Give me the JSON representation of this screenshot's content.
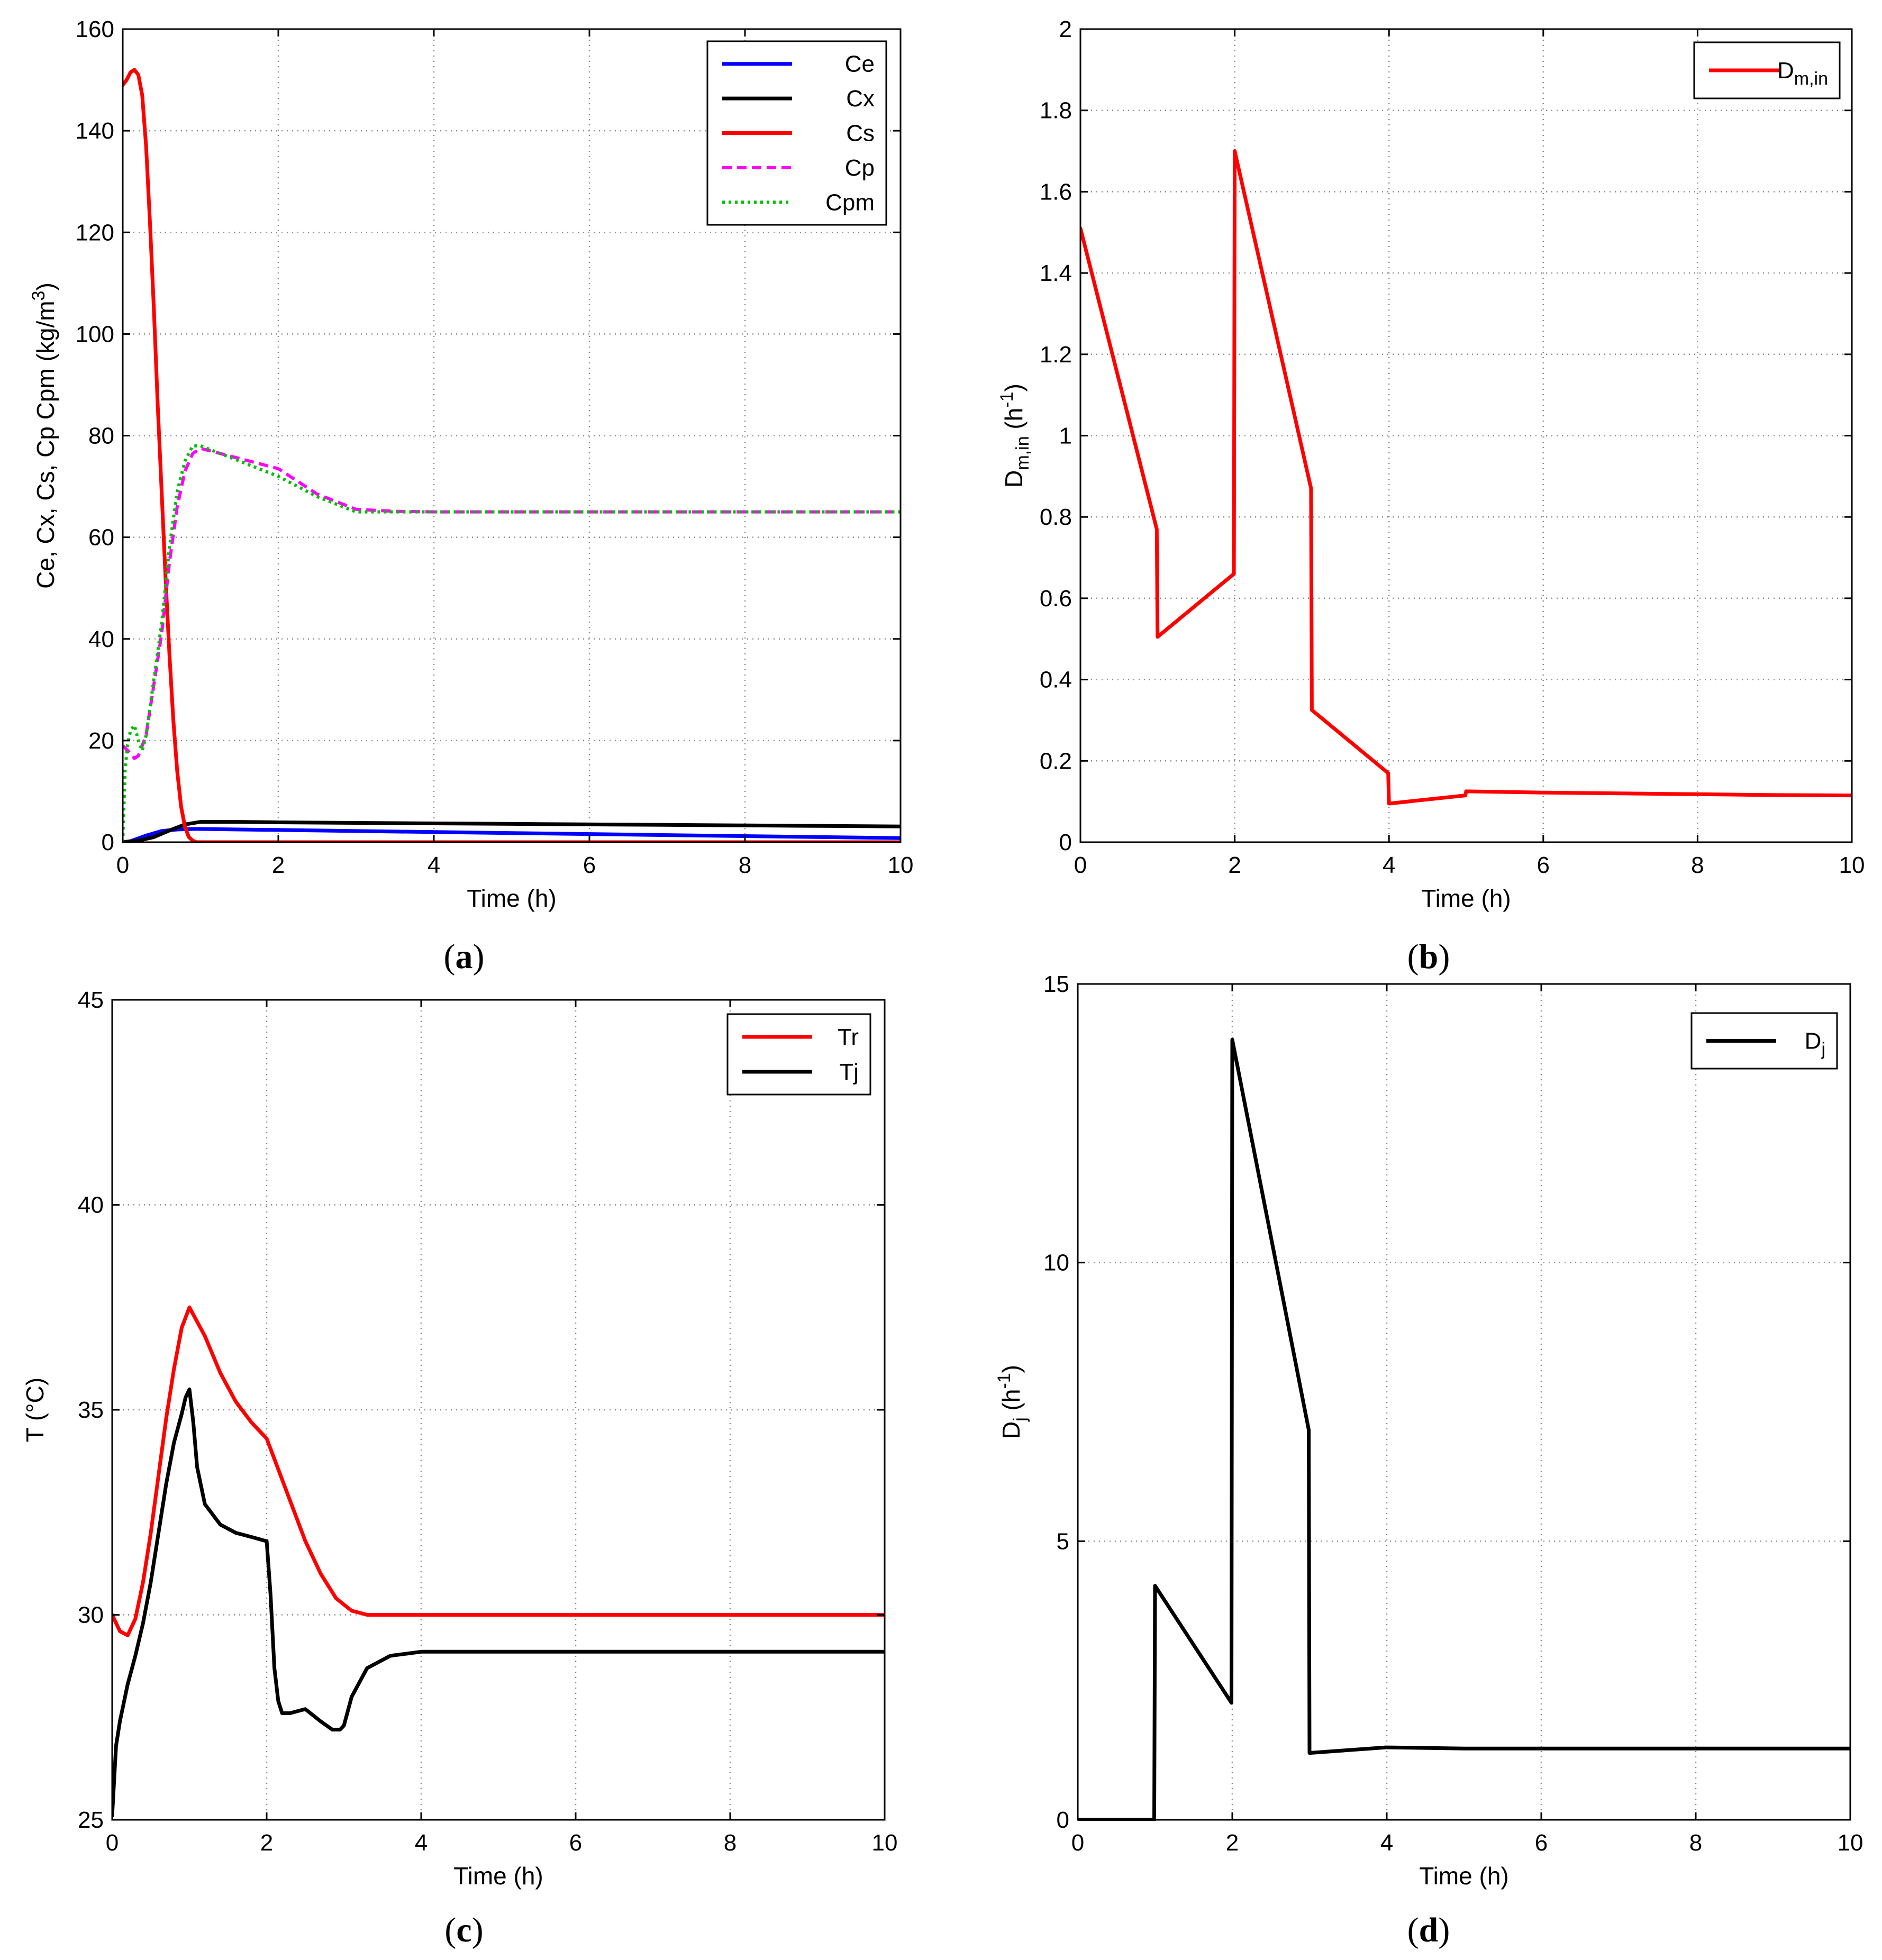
{
  "chart_data": [
    {
      "type": "line",
      "caption": "a",
      "xlabel": "Time (h)",
      "ylabel": {
        "main": "Ce, Cx, Cs, Cp Cpm (kg/m",
        "sup": "3",
        "close": ")"
      },
      "xlim": [
        0,
        10
      ],
      "ylim": [
        0,
        160
      ],
      "xticks": [
        "0",
        "2",
        "4",
        "6",
        "8",
        "10"
      ],
      "yticks": [
        "0",
        "20",
        "40",
        "60",
        "80",
        "100",
        "120",
        "140",
        "160"
      ],
      "grid": true,
      "legend_position": "top-right",
      "series": [
        {
          "name": "Ce",
          "color": "#0000ff",
          "style": "solid",
          "x": [
            0,
            0.1,
            0.3,
            0.5,
            0.7,
            0.9,
            1.0,
            1.5,
            2,
            3,
            4,
            5,
            6,
            7,
            8,
            9,
            10
          ],
          "y": [
            0,
            0.2,
            1.3,
            2.2,
            2.5,
            2.6,
            2.6,
            2.5,
            2.4,
            2.2,
            2.0,
            1.8,
            1.6,
            1.4,
            1.2,
            1.0,
            0.8
          ]
        },
        {
          "name": "Cx",
          "color": "#000000",
          "style": "solid",
          "x": [
            0,
            0.2,
            0.4,
            0.6,
            0.8,
            1.0,
            1.5,
            2,
            3,
            4,
            5,
            6,
            7,
            8,
            9,
            10
          ],
          "y": [
            0,
            0.3,
            1.0,
            2.3,
            3.5,
            4.0,
            4.0,
            3.9,
            3.8,
            3.7,
            3.6,
            3.5,
            3.4,
            3.3,
            3.2,
            3.1
          ]
        },
        {
          "name": "Cs",
          "color": "#ff0000",
          "style": "solid",
          "x": [
            0,
            0.05,
            0.1,
            0.15,
            0.2,
            0.25,
            0.3,
            0.35,
            0.4,
            0.45,
            0.5,
            0.55,
            0.6,
            0.65,
            0.7,
            0.75,
            0.8,
            0.85,
            0.9,
            0.95,
            1.0,
            2,
            3,
            4,
            5,
            6,
            7,
            8,
            9,
            10
          ],
          "y": [
            149,
            150,
            151.5,
            152,
            151,
            147,
            137,
            122,
            105,
            86,
            69,
            52,
            37,
            24,
            14,
            7,
            3,
            1,
            0.3,
            0,
            0,
            0,
            0,
            0,
            0,
            0,
            0,
            0,
            0,
            0
          ]
        },
        {
          "name": "Cp",
          "color": "#ff00ff",
          "style": "dashed",
          "x": [
            0,
            0.1,
            0.15,
            0.2,
            0.3,
            0.4,
            0.5,
            0.6,
            0.7,
            0.8,
            0.9,
            1.0,
            1.5,
            2.0,
            2.5,
            3.0,
            3.5,
            4,
            5,
            6,
            7,
            8,
            9,
            10
          ],
          "y": [
            19,
            17.5,
            16.5,
            17,
            21,
            31,
            41,
            55,
            66,
            73,
            76.5,
            77.5,
            75.5,
            73.5,
            68.5,
            65.5,
            65.1,
            65,
            65,
            65,
            65,
            65,
            65,
            65
          ]
        },
        {
          "name": "Cpm",
          "color": "#00c000",
          "style": "dotted",
          "x": [
            0,
            0.03,
            0.06,
            0.1,
            0.15,
            0.2,
            0.25,
            0.3,
            0.4,
            0.5,
            0.6,
            0.7,
            0.8,
            0.9,
            1.0,
            1.5,
            2.0,
            2.5,
            3.0,
            3.5,
            4,
            5,
            6,
            7,
            8,
            9,
            10
          ],
          "y": [
            0,
            14,
            19,
            22,
            23,
            20,
            18,
            21,
            32,
            43,
            58,
            69,
            75,
            78,
            78,
            75,
            72,
            68,
            65,
            65,
            65,
            65,
            65,
            65,
            65,
            65,
            65
          ]
        }
      ]
    },
    {
      "type": "line",
      "caption": "b",
      "xlabel": "Time (h)",
      "ylabel": {
        "main": "D",
        "sub": "m,in",
        "rest": " (h",
        "sup": "-1",
        "close": ")"
      },
      "xlim": [
        0,
        10
      ],
      "ylim": [
        0,
        2
      ],
      "xticks": [
        "0",
        "2",
        "4",
        "6",
        "8",
        "10"
      ],
      "yticks": [
        "0",
        "0.2",
        "0.4",
        "0.6",
        "0.8",
        "1",
        "1.2",
        "1.4",
        "1.6",
        "1.8",
        "2"
      ],
      "grid": true,
      "legend_position": "top-right",
      "series": [
        {
          "name": "D",
          "legend_sub": "m,in",
          "color": "#ff0000",
          "style": "solid",
          "x": [
            0,
            0.99,
            1.0,
            1.99,
            2.0,
            2.99,
            3.0,
            3.99,
            4.0,
            4.99,
            5.0,
            6,
            7,
            8,
            9,
            10
          ],
          "y": [
            1.51,
            0.77,
            0.505,
            0.66,
            1.7,
            0.87,
            0.325,
            0.17,
            0.095,
            0.115,
            0.125,
            0.122,
            0.12,
            0.118,
            0.116,
            0.115
          ]
        }
      ]
    },
    {
      "type": "line",
      "caption": "c",
      "xlabel": "Time (h)",
      "ylabel": {
        "main": "T (",
        "deg": "°C",
        "close": ")"
      },
      "xlim": [
        0,
        10
      ],
      "ylim": [
        25,
        45
      ],
      "xticks": [
        "0",
        "2",
        "4",
        "6",
        "8",
        "10"
      ],
      "yticks": [
        "25",
        "30",
        "35",
        "40",
        "45"
      ],
      "grid": true,
      "legend_position": "top-right",
      "series": [
        {
          "name": "Tr",
          "color": "#ff0000",
          "style": "solid",
          "x": [
            0,
            0.1,
            0.2,
            0.3,
            0.4,
            0.5,
            0.6,
            0.7,
            0.8,
            0.9,
            1.0,
            1.2,
            1.4,
            1.6,
            1.8,
            2.0,
            2.1,
            2.3,
            2.5,
            2.7,
            2.9,
            3.1,
            3.3,
            3.6,
            4,
            5,
            6,
            7,
            8,
            9,
            10
          ],
          "y": [
            30,
            29.6,
            29.5,
            29.9,
            30.8,
            32.0,
            33.4,
            34.8,
            36.0,
            37.0,
            37.5,
            36.8,
            35.9,
            35.2,
            34.7,
            34.3,
            33.8,
            32.8,
            31.8,
            31.0,
            30.4,
            30.1,
            30.0,
            30.0,
            30.0,
            30.0,
            30.0,
            30.0,
            30.0,
            30.0,
            30.0
          ]
        },
        {
          "name": "Tj",
          "color": "#000000",
          "style": "solid",
          "x": [
            0,
            0.05,
            0.1,
            0.2,
            0.3,
            0.4,
            0.5,
            0.6,
            0.7,
            0.8,
            0.9,
            0.95,
            1.0,
            1.05,
            1.1,
            1.2,
            1.4,
            1.6,
            1.8,
            1.99,
            2.0,
            2.05,
            2.1,
            2.15,
            2.2,
            2.3,
            2.5,
            2.7,
            2.85,
            2.95,
            3.0,
            3.1,
            3.3,
            3.6,
            4,
            5,
            6,
            7,
            8,
            9,
            10
          ],
          "y": [
            25.1,
            26.8,
            27.4,
            28.3,
            29.0,
            29.8,
            30.8,
            32.0,
            33.2,
            34.2,
            34.9,
            35.3,
            35.5,
            34.7,
            33.6,
            32.7,
            32.2,
            32.0,
            31.9,
            31.8,
            31.8,
            30.5,
            28.7,
            27.9,
            27.6,
            27.6,
            27.7,
            27.4,
            27.2,
            27.2,
            27.3,
            28.0,
            28.7,
            29.0,
            29.1,
            29.1,
            29.1,
            29.1,
            29.1,
            29.1,
            29.1
          ]
        }
      ]
    },
    {
      "type": "line",
      "caption": "d",
      "xlabel": "Time (h)",
      "ylabel": {
        "main": "D",
        "sub": "j",
        "rest": " (h",
        "sup": "-1",
        "close": ")"
      },
      "xlim": [
        0,
        10
      ],
      "ylim": [
        0,
        15
      ],
      "xticks": [
        "0",
        "2",
        "4",
        "6",
        "8",
        "10"
      ],
      "yticks": [
        "0",
        "5",
        "10",
        "15"
      ],
      "grid": true,
      "legend_position": "top-right",
      "series": [
        {
          "name": "D",
          "legend_sub": "j",
          "color": "#000000",
          "style": "solid",
          "x": [
            0,
            0.99,
            1.0,
            1.99,
            2.0,
            2.99,
            3.0,
            3.99,
            4.0,
            5,
            6,
            7,
            8,
            9,
            10
          ],
          "y": [
            0,
            0,
            4.2,
            2.1,
            14.0,
            7.0,
            1.2,
            1.3,
            1.3,
            1.28,
            1.28,
            1.28,
            1.28,
            1.28,
            1.28
          ]
        }
      ]
    }
  ]
}
